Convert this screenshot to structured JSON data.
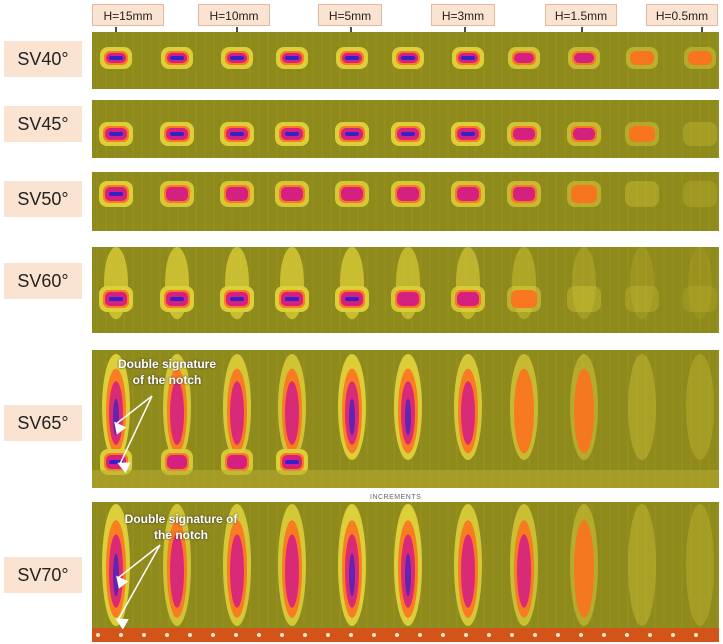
{
  "h_labels": [
    "H=15mm",
    "H=10mm",
    "H=5mm",
    "H=3mm",
    "H=1.5mm",
    "H=0.5mm"
  ],
  "rows": [
    {
      "label": "SV40°"
    },
    {
      "label": "SV45°"
    },
    {
      "label": "SV50°"
    },
    {
      "label": "SV60°"
    },
    {
      "label": "SV65°"
    },
    {
      "label": "SV70°"
    }
  ],
  "annotations": {
    "sv65": "Double signature of the notch",
    "sv70": "Double signature of the notch"
  },
  "axis_caption": "INCREMENTS",
  "colors": {
    "background": "#8f8a1c",
    "halo": "#dccf3a",
    "hot": "#d4217f",
    "core": "#3322c8",
    "accent": "#ff6f1f"
  }
}
